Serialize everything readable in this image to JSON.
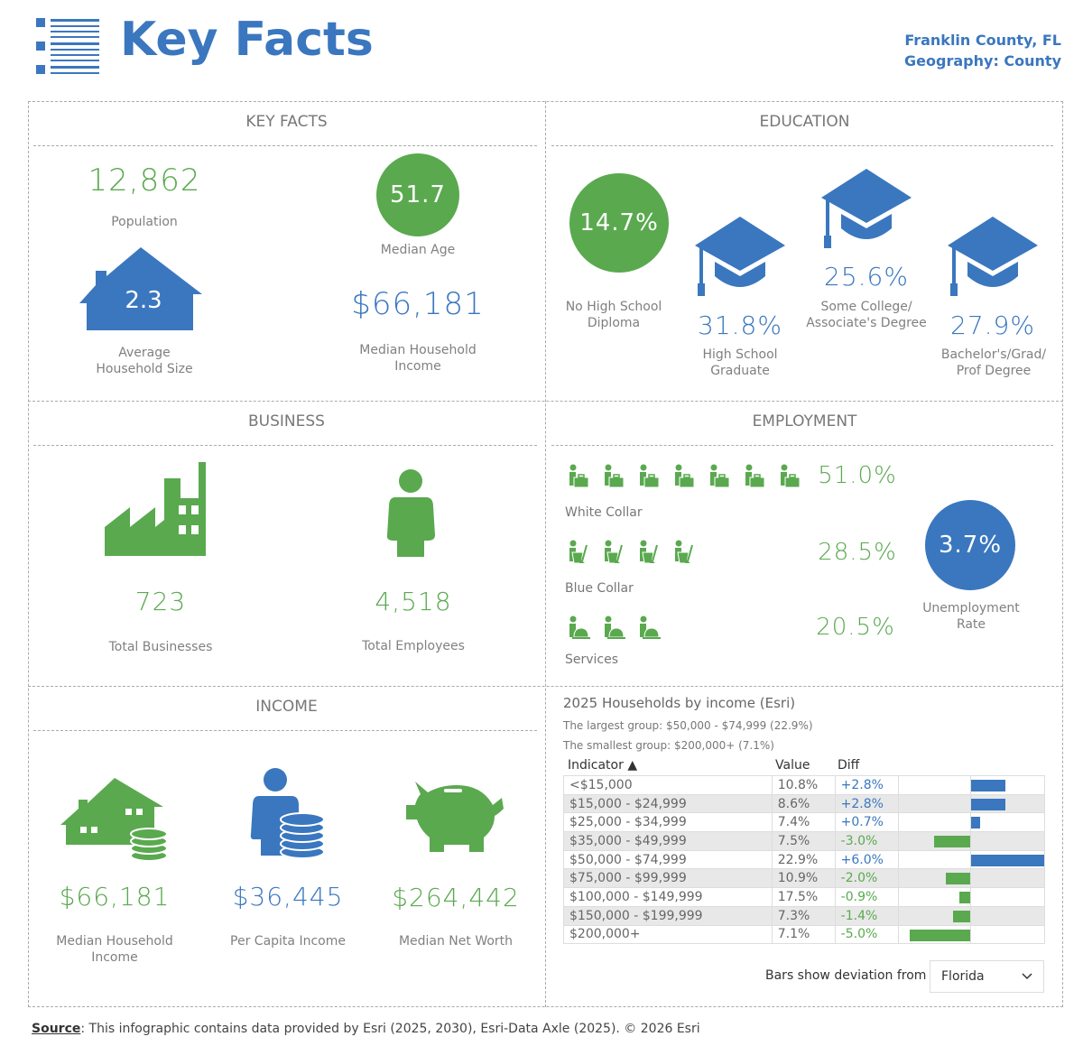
{
  "header": {
    "title": "Key Facts",
    "location": "Franklin County, FL",
    "geography": "Geography: County",
    "icon": "list-icon"
  },
  "colors": {
    "green": "#5aa94f",
    "blue": "#3a77bf"
  },
  "key_facts": {
    "title": "KEY FACTS",
    "population": "12,862",
    "population_label": "Population",
    "median_age": "51.7",
    "median_age_label": "Median Age",
    "household_size": "2.3",
    "household_size_label1": "Average",
    "household_size_label2": "Household Size",
    "median_income": "$66,181",
    "median_income_label1": "Median Household",
    "median_income_label2": "Income"
  },
  "education": {
    "title": "EDUCATION",
    "no_hs": "14.7%",
    "no_hs_label1": "No High School",
    "no_hs_label2": "Diploma",
    "hs": "31.8%",
    "hs_label1": "High School",
    "hs_label2": "Graduate",
    "some_college": "25.6%",
    "some_college_label1": "Some College/",
    "some_college_label2": "Associate's Degree",
    "bachelors": "27.9%",
    "bachelors_label1": "Bachelor's/Grad/",
    "bachelors_label2": "Prof Degree"
  },
  "business": {
    "title": "BUSINESS",
    "businesses": "723",
    "businesses_label": "Total Businesses",
    "employees": "4,518",
    "employees_label": "Total Employees"
  },
  "employment": {
    "title": "EMPLOYMENT",
    "white_collar": "51.0%",
    "white_collar_label": "White Collar",
    "white_collar_icons": 7,
    "blue_collar": "28.5%",
    "blue_collar_label": "Blue Collar",
    "blue_collar_icons": 4,
    "services": "20.5%",
    "services_label": "Services",
    "services_icons": 3,
    "unemployment": "3.7%",
    "unemployment_label1": "Unemployment",
    "unemployment_label2": "Rate"
  },
  "income": {
    "title": "INCOME",
    "median_hh": "$66,181",
    "median_hh_label1": "Median Household",
    "median_hh_label2": "Income",
    "per_capita": "$36,445",
    "per_capita_label": "Per Capita Income",
    "net_worth": "$264,442",
    "net_worth_label": "Median Net Worth"
  },
  "hh_income": {
    "title": "2025 Households by income (Esri)",
    "largest": "The largest group: $50,000 - $74,999 (22.9%)",
    "smallest": "The smallest group: $200,000+ (7.1%)",
    "col_indicator": "Indicator ▲",
    "col_value": "Value",
    "col_diff": "Diff",
    "rows": [
      {
        "indicator": "<$15,000",
        "value": "10.8%",
        "diff": "+2.8%",
        "d": 2.8
      },
      {
        "indicator": "$15,000 - $24,999",
        "value": "8.6%",
        "diff": "+2.8%",
        "d": 2.8
      },
      {
        "indicator": "$25,000 - $34,999",
        "value": "7.4%",
        "diff": "+0.7%",
        "d": 0.7
      },
      {
        "indicator": "$35,000 - $49,999",
        "value": "7.5%",
        "diff": "-3.0%",
        "d": -3.0
      },
      {
        "indicator": "$50,000 - $74,999",
        "value": "22.9%",
        "diff": "+6.0%",
        "d": 6.0
      },
      {
        "indicator": "$75,000 - $99,999",
        "value": "10.9%",
        "diff": "-2.0%",
        "d": -2.0
      },
      {
        "indicator": "$100,000 - $149,999",
        "value": "17.5%",
        "diff": "-0.9%",
        "d": -0.9
      },
      {
        "indicator": "$150,000 - $199,999",
        "value": "7.3%",
        "diff": "-1.4%",
        "d": -1.4
      },
      {
        "indicator": "$200,000+",
        "value": "7.1%",
        "diff": "-5.0%",
        "d": -5.0
      }
    ],
    "deviation_label": "Bars show deviation from",
    "deviation_value": "Florida"
  },
  "footer": {
    "source_label": "Source",
    "text": ": This infographic contains data provided by Esri (2025, 2030), Esri-Data Axle (2025). © 2026 Esri"
  }
}
